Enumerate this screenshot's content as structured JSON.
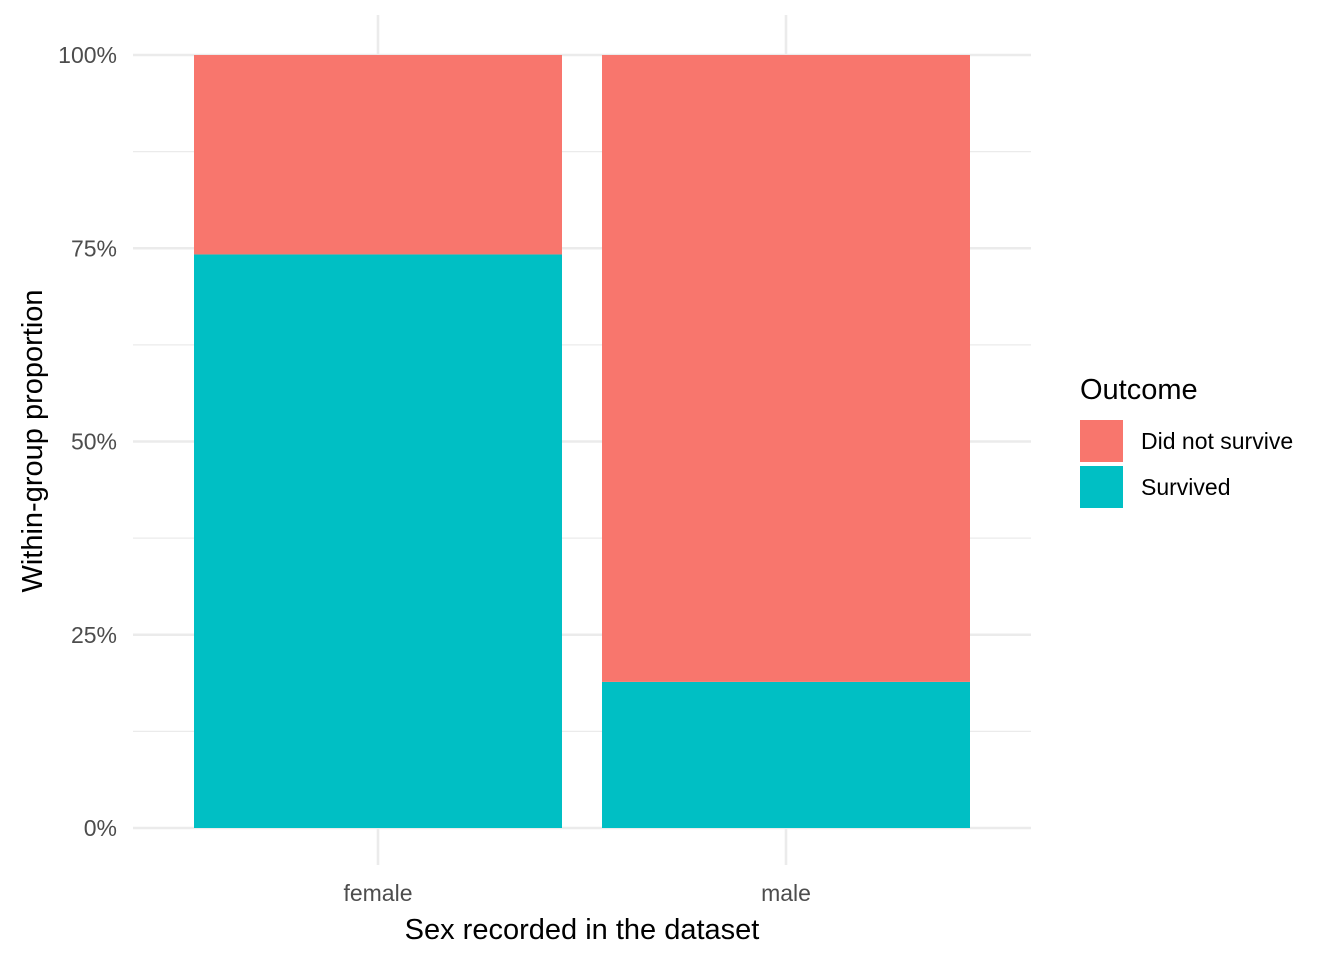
{
  "chart_data": {
    "type": "bar",
    "stacked": true,
    "categories": [
      "female",
      "male"
    ],
    "series": [
      {
        "name": "Survived",
        "values": [
          0.742,
          0.189
        ],
        "color": "#00BFC4"
      },
      {
        "name": "Did not survive",
        "values": [
          0.258,
          0.811
        ],
        "color": "#F8766D"
      }
    ],
    "xlabel": "Sex recorded in the dataset",
    "ylabel": "Within-group proportion",
    "ylim": [
      0,
      1
    ],
    "y_ticks": [
      0,
      0.25,
      0.5,
      0.75,
      1
    ],
    "y_tick_labels": [
      "0%",
      "25%",
      "50%",
      "75%",
      "100%"
    ],
    "grid": true,
    "legend": {
      "title": "Outcome",
      "position": "right",
      "entries": [
        {
          "label": "Did not survive",
          "color": "#F8766D"
        },
        {
          "label": "Survived",
          "color": "#00BFC4"
        }
      ]
    }
  }
}
